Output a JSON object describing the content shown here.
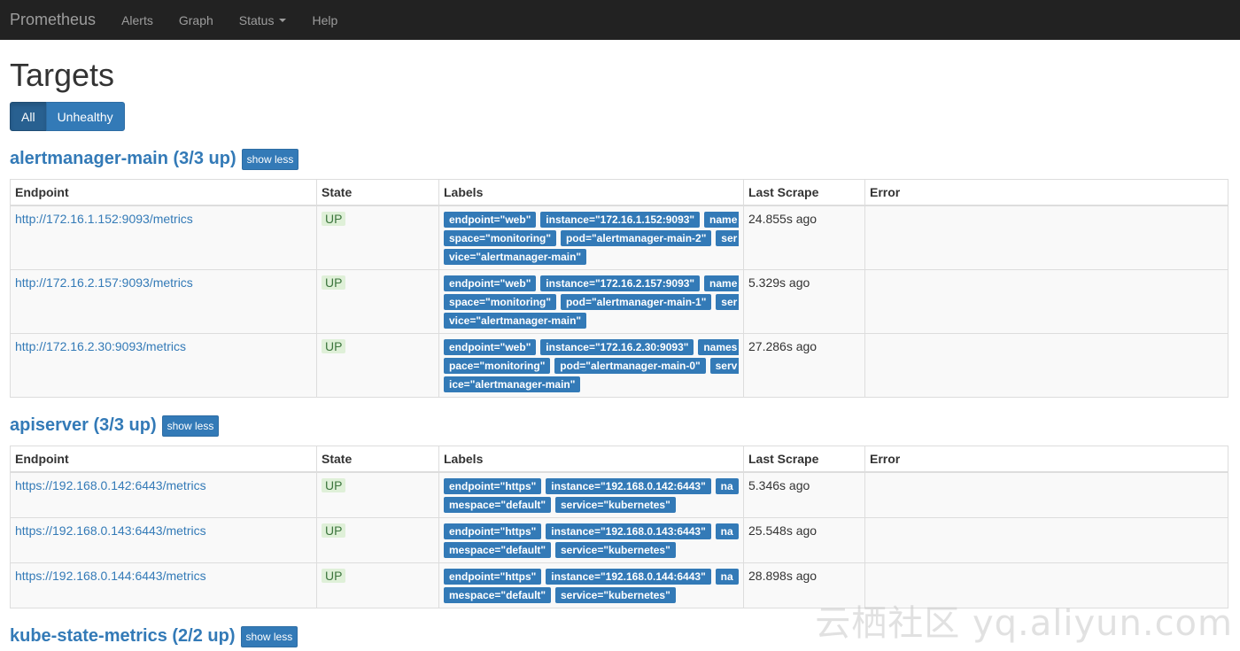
{
  "navbar": {
    "brand": "Prometheus",
    "items": [
      "Alerts",
      "Graph",
      "Status",
      "Help"
    ]
  },
  "page_title": "Targets",
  "filters": [
    "All",
    "Unhealthy"
  ],
  "table_headers": [
    "Endpoint",
    "State",
    "Labels",
    "Last Scrape",
    "Error"
  ],
  "jobs": [
    {
      "title": "alertmanager-main (3/3 up)",
      "toggle": "show less",
      "rows": [
        {
          "endpoint": "http://172.16.1.152:9093/metrics",
          "state": "UP",
          "labels": [
            "endpoint=\"web\"",
            "instance=\"172.16.1.152:9093\"",
            "namespace=\"monitoring\"",
            "pod=\"alertmanager-main-2\"",
            "service=\"alertmanager-main\""
          ],
          "last_scrape": "24.855s ago",
          "error": ""
        },
        {
          "endpoint": "http://172.16.2.157:9093/metrics",
          "state": "UP",
          "labels": [
            "endpoint=\"web\"",
            "instance=\"172.16.2.157:9093\"",
            "namespace=\"monitoring\"",
            "pod=\"alertmanager-main-1\"",
            "service=\"alertmanager-main\""
          ],
          "last_scrape": "5.329s ago",
          "error": ""
        },
        {
          "endpoint": "http://172.16.2.30:9093/metrics",
          "state": "UP",
          "labels": [
            "endpoint=\"web\"",
            "instance=\"172.16.2.30:9093\"",
            "namespace=\"monitoring\"",
            "pod=\"alertmanager-main-0\"",
            "service=\"alertmanager-main\""
          ],
          "last_scrape": "27.286s ago",
          "error": ""
        }
      ]
    },
    {
      "title": "apiserver (3/3 up)",
      "toggle": "show less",
      "rows": [
        {
          "endpoint": "https://192.168.0.142:6443/metrics",
          "state": "UP",
          "labels": [
            "endpoint=\"https\"",
            "instance=\"192.168.0.142:6443\"",
            "namespace=\"default\"",
            "service=\"kubernetes\""
          ],
          "last_scrape": "5.346s ago",
          "error": ""
        },
        {
          "endpoint": "https://192.168.0.143:6443/metrics",
          "state": "UP",
          "labels": [
            "endpoint=\"https\"",
            "instance=\"192.168.0.143:6443\"",
            "namespace=\"default\"",
            "service=\"kubernetes\""
          ],
          "last_scrape": "25.548s ago",
          "error": ""
        },
        {
          "endpoint": "https://192.168.0.144:6443/metrics",
          "state": "UP",
          "labels": [
            "endpoint=\"https\"",
            "instance=\"192.168.0.144:6443\"",
            "namespace=\"default\"",
            "service=\"kubernetes\""
          ],
          "last_scrape": "28.898s ago",
          "error": ""
        }
      ]
    },
    {
      "title": "kube-state-metrics (2/2 up)",
      "toggle": "show less",
      "rows": []
    }
  ],
  "watermark": "云栖社区 yq.aliyun.com"
}
